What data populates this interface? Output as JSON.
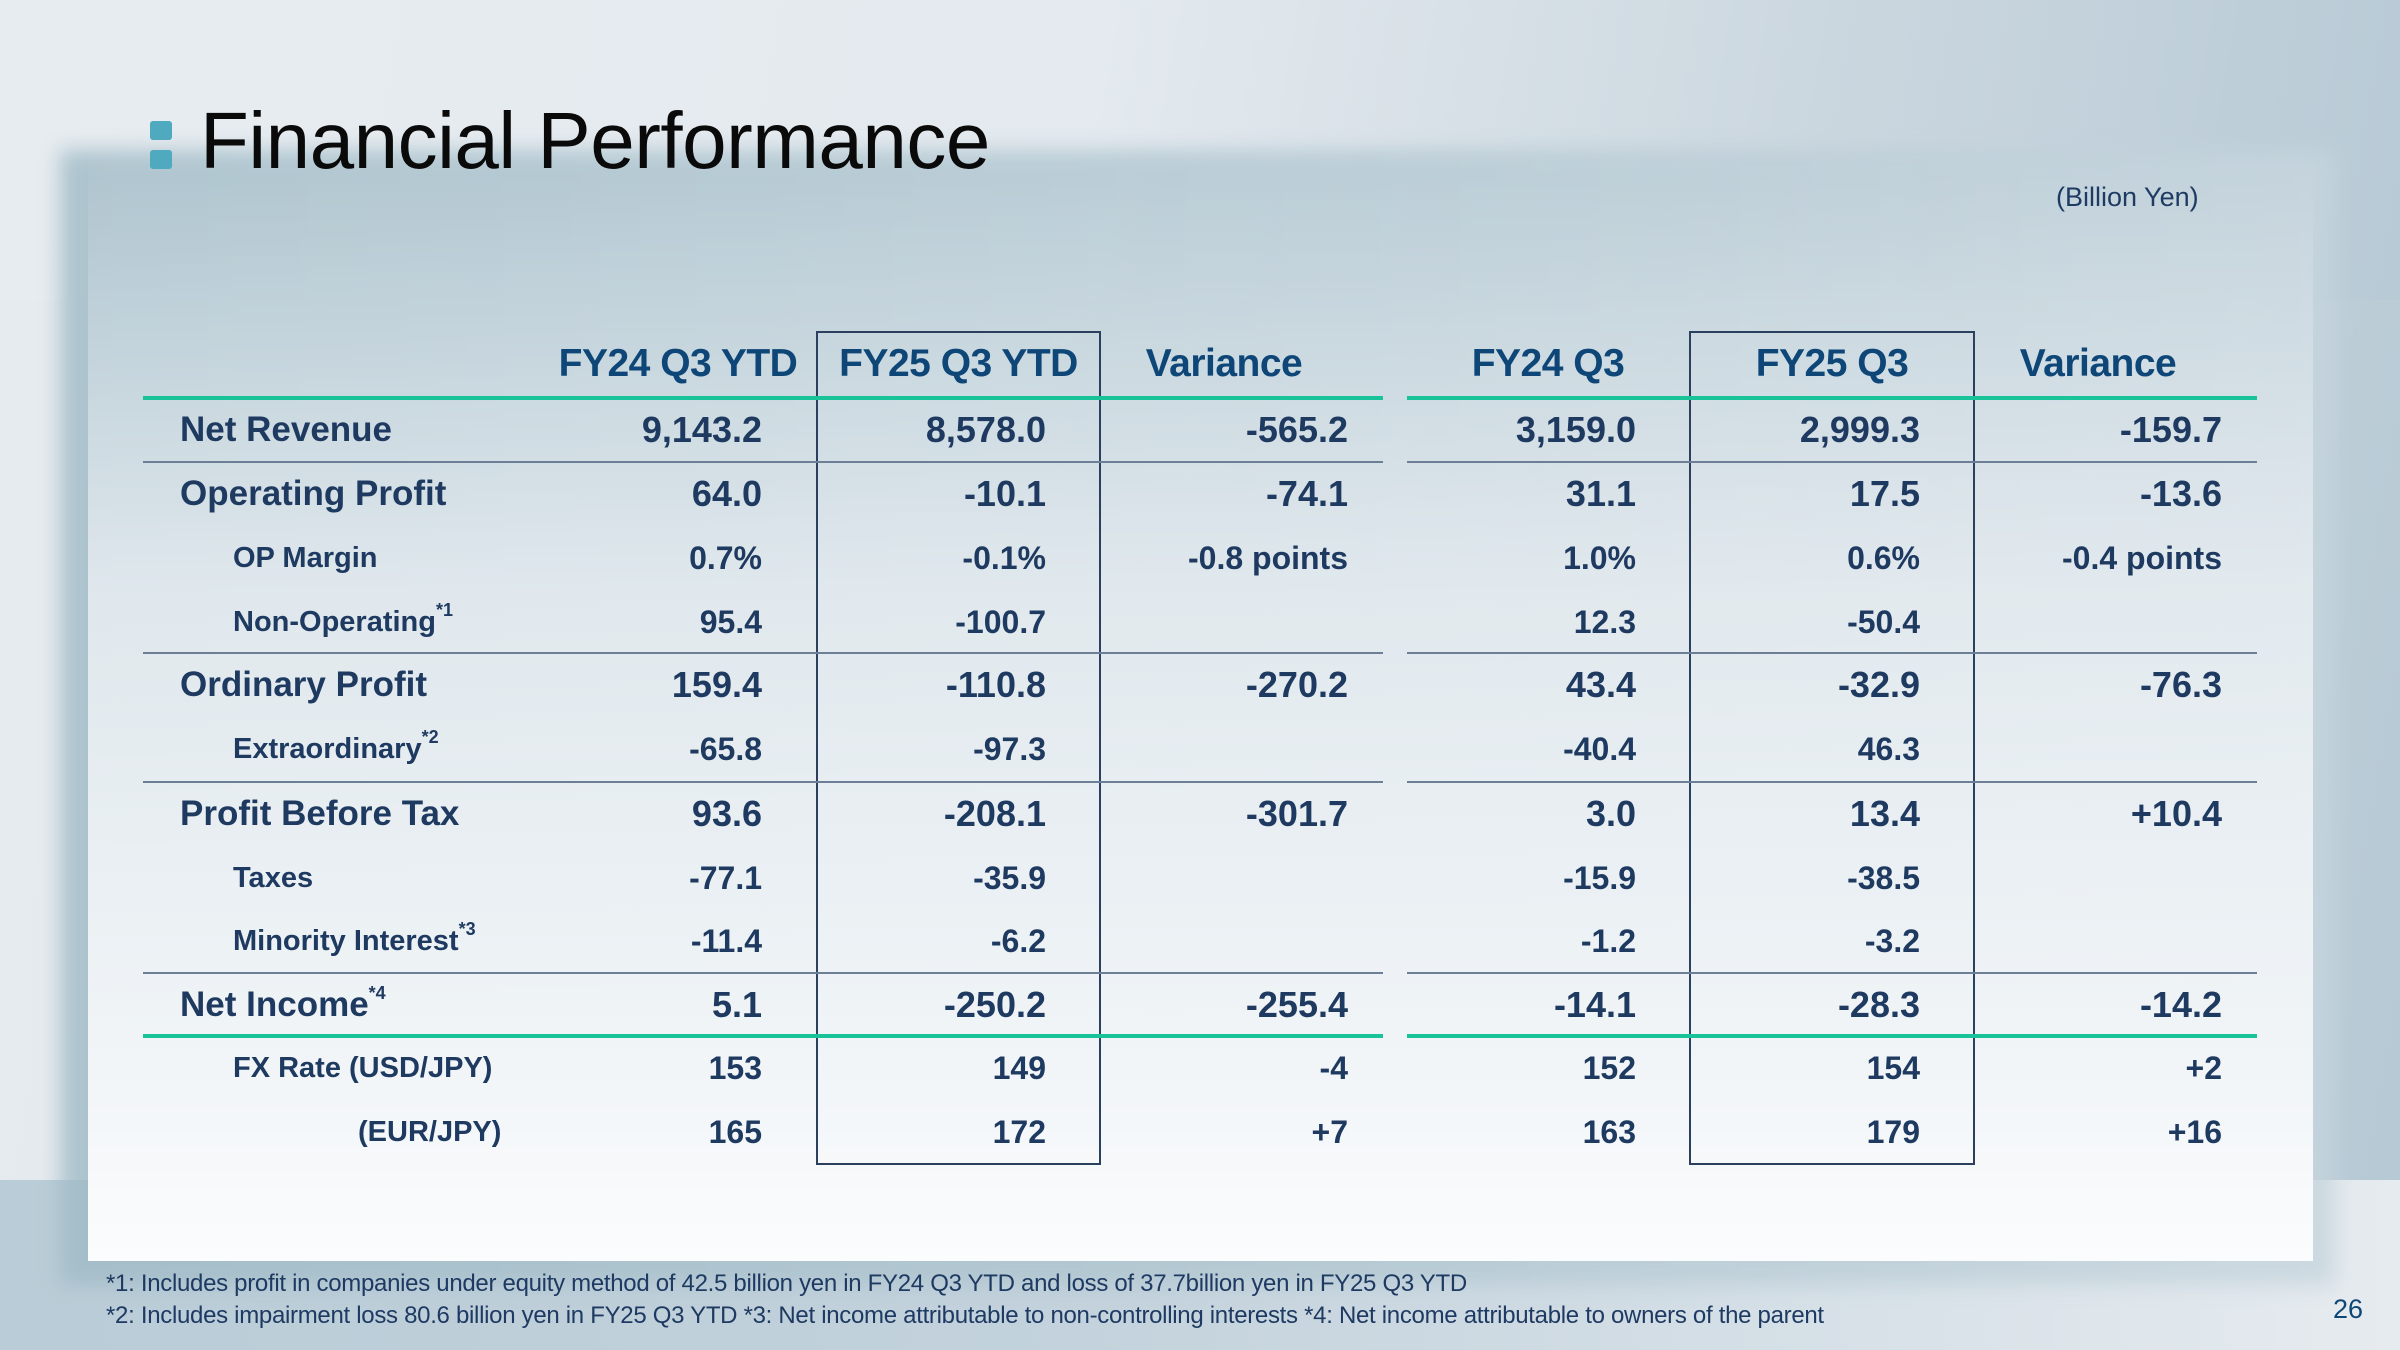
{
  "title": "Financial Performance",
  "unit": "(Billion Yen)",
  "colors": {
    "accent_line": "#19c39a",
    "text_dark_blue": "#1f3a60",
    "header_blue": "#0d4677",
    "bullet": "#4fa9bf"
  },
  "title_icon": "double-square-bullet-icon",
  "table": {
    "headers": [
      "FY24 Q3 YTD",
      "FY25 Q3 YTD",
      "Variance",
      "FY24 Q3",
      "FY25 Q3",
      "Variance"
    ],
    "rows": [
      {
        "label": "Net Revenue",
        "note": "",
        "values": [
          "9,143.2",
          "8,578.0",
          "-565.2",
          "3,159.0",
          "2,999.3",
          "-159.7"
        ]
      },
      {
        "label": "Operating Profit",
        "note": "",
        "values": [
          "64.0",
          "-10.1",
          "-74.1",
          "31.1",
          "17.5",
          "-13.6"
        ]
      },
      {
        "label": "OP Margin",
        "note": "",
        "values": [
          "0.7%",
          "-0.1%",
          "-0.8 points",
          "1.0%",
          "0.6%",
          "-0.4 points"
        ]
      },
      {
        "label": "Non-Operating",
        "note": "*1",
        "values": [
          "95.4",
          "-100.7",
          "",
          "12.3",
          "-50.4",
          ""
        ]
      },
      {
        "label": "Ordinary Profit",
        "note": "",
        "values": [
          "159.4",
          "-110.8",
          "-270.2",
          "43.4",
          "-32.9",
          "-76.3"
        ]
      },
      {
        "label": "Extraordinary",
        "note": "*2",
        "values": [
          "-65.8",
          "-97.3",
          "",
          "-40.4",
          "46.3",
          ""
        ]
      },
      {
        "label": "Profit Before Tax",
        "note": "",
        "values": [
          "93.6",
          "-208.1",
          "-301.7",
          "3.0",
          "13.4",
          "+10.4"
        ]
      },
      {
        "label": "Taxes",
        "note": "",
        "values": [
          "-77.1",
          "-35.9",
          "",
          "-15.9",
          "-38.5",
          ""
        ]
      },
      {
        "label": "Minority Interest",
        "note": "*3",
        "values": [
          "-11.4",
          "-6.2",
          "",
          "-1.2",
          "-3.2",
          ""
        ]
      },
      {
        "label": "Net Income",
        "note": "*4",
        "values": [
          "5.1",
          "-250.2",
          "-255.4",
          "-14.1",
          "-28.3",
          "-14.2"
        ]
      },
      {
        "label": "FX Rate (USD/JPY)",
        "note": "",
        "values": [
          "153",
          "149",
          "-4",
          "152",
          "154",
          "+2"
        ]
      },
      {
        "label": "(EUR/JPY)",
        "note": "",
        "values": [
          "165",
          "172",
          "+7",
          "163",
          "179",
          "+16"
        ]
      }
    ]
  },
  "footnotes": [
    "*1: Includes profit in companies under equity method of 42.5 billion yen in FY24 Q3 YTD and loss of 37.7billion yen in FY25 Q3 YTD",
    "*2: Includes impairment loss 80.6 billion yen in FY25 Q3 YTD *3: Net income attributable to non-controlling interests *4: Net income attributable to owners of the parent"
  ],
  "page_number": "26"
}
